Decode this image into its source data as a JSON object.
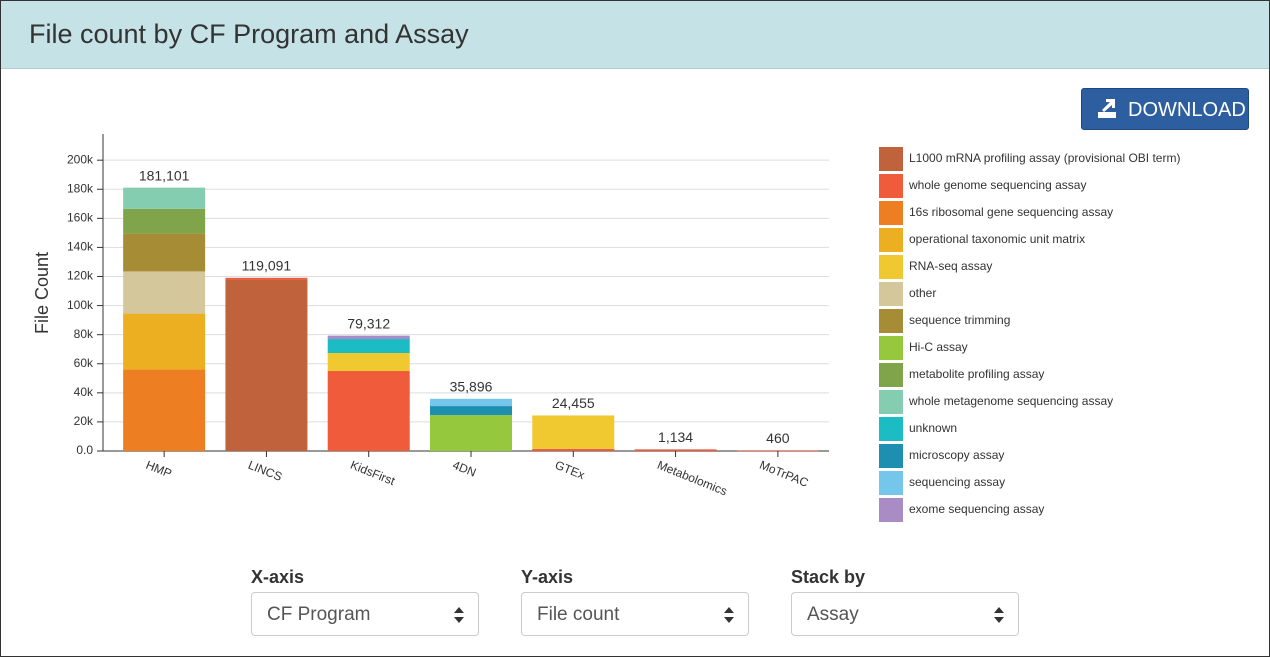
{
  "header": {
    "title": "File count by CF Program and Assay"
  },
  "download_button": "DOWNLOAD",
  "chart_data": {
    "type": "stacked_bar",
    "ylabel": "File Count",
    "categories": [
      "HMP",
      "LINCS",
      "KidsFirst",
      "4DN",
      "GTEx",
      "Metabolomics",
      "MoTrPAC"
    ],
    "totals": [
      181101,
      119091,
      79312,
      35896,
      24455,
      1134,
      460
    ],
    "total_labels": [
      "181,101",
      "119,091",
      "79,312",
      "35,896",
      "24,455",
      "1,134",
      "460"
    ],
    "ylim": [
      0,
      218000
    ],
    "yticks": [
      {
        "value": 0,
        "label": "0.0"
      },
      {
        "value": 20000,
        "label": "20k"
      },
      {
        "value": 40000,
        "label": "40k"
      },
      {
        "value": 60000,
        "label": "60k"
      },
      {
        "value": 80000,
        "label": "80k"
      },
      {
        "value": 100000,
        "label": "100k"
      },
      {
        "value": 120000,
        "label": "120k"
      },
      {
        "value": 140000,
        "label": "140k"
      },
      {
        "value": 160000,
        "label": "160k"
      },
      {
        "value": 180000,
        "label": "180k"
      },
      {
        "value": 200000,
        "label": "200k"
      }
    ],
    "grid": true,
    "series": [
      {
        "name": "L1000 mRNA profiling assay (provisional OBI term)",
        "color": "#c0623c",
        "values": [
          null,
          118000,
          null,
          null,
          null,
          null,
          null
        ]
      },
      {
        "name": "whole genome sequencing assay",
        "color": "#ef5b3b",
        "values": [
          null,
          1091,
          55000,
          null,
          1455,
          1134,
          460
        ]
      },
      {
        "name": "16s ribosomal gene sequencing assay",
        "color": "#ed7f22",
        "values": [
          56000,
          null,
          null,
          null,
          null,
          null,
          null
        ]
      },
      {
        "name": "operational taxonomic unit matrix",
        "color": "#ecaf22",
        "values": [
          38500,
          null,
          null,
          null,
          null,
          null,
          null
        ]
      },
      {
        "name": "RNA-seq assay",
        "color": "#f0c930",
        "values": [
          null,
          null,
          12400,
          null,
          23000,
          null,
          null
        ]
      },
      {
        "name": "other",
        "color": "#d3c79b",
        "values": [
          29000,
          null,
          null,
          null,
          null,
          null,
          null
        ]
      },
      {
        "name": "sequence trimming",
        "color": "#a68c34",
        "values": [
          26000,
          null,
          null,
          null,
          null,
          null,
          null
        ]
      },
      {
        "name": "Hi-C assay",
        "color": "#95c83c",
        "values": [
          null,
          null,
          null,
          24700,
          null,
          null,
          null
        ]
      },
      {
        "name": "metabolite profiling assay",
        "color": "#7fa44a",
        "values": [
          17000,
          null,
          null,
          null,
          null,
          null,
          null
        ]
      },
      {
        "name": "whole metagenome sequencing assay",
        "color": "#84cdb1",
        "values": [
          14600,
          null,
          null,
          null,
          null,
          null,
          null
        ]
      },
      {
        "name": "unknown",
        "color": "#1bbcc4",
        "values": [
          null,
          null,
          9600,
          null,
          null,
          null,
          null
        ]
      },
      {
        "name": "microscopy assay",
        "color": "#1e8fb0",
        "values": [
          null,
          null,
          null,
          6200,
          null,
          null,
          null
        ]
      },
      {
        "name": "sequencing assay",
        "color": "#74c6ea",
        "values": [
          null,
          null,
          null,
          4996,
          null,
          null,
          null
        ]
      },
      {
        "name": "exome sequencing assay",
        "color": "#a98cc5",
        "values": [
          null,
          null,
          2312,
          null,
          null,
          null,
          null
        ]
      }
    ]
  },
  "controls": [
    {
      "label": "X-axis",
      "value": "CF Program"
    },
    {
      "label": "Y-axis",
      "value": "File count"
    },
    {
      "label": "Stack by",
      "value": "Assay"
    }
  ]
}
